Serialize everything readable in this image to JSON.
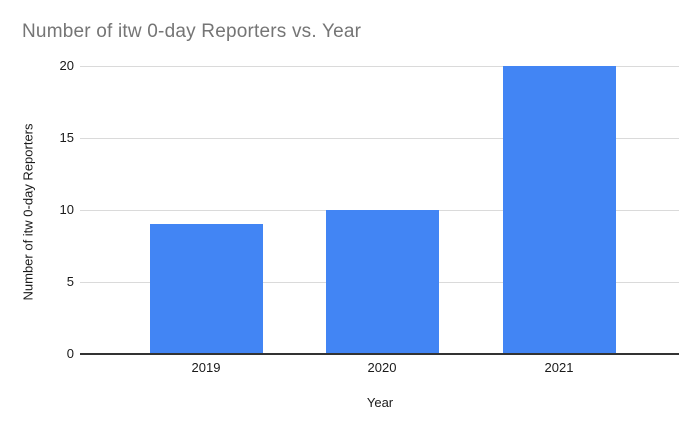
{
  "chart_data": {
    "type": "bar",
    "title": "Number of itw 0-day Reporters vs. Year",
    "categories": [
      "2019",
      "2020",
      "2021"
    ],
    "values": [
      9,
      10,
      20
    ],
    "xlabel": "Year",
    "ylabel": "Number of itw 0-day Reporters",
    "ylim": [
      0,
      20
    ],
    "yticks": [
      0,
      5,
      10,
      15,
      20
    ],
    "grid": true,
    "legend": "none",
    "bar_color": "#4285F4",
    "gridline_color": "#dadada",
    "axis_line_color": "#333333",
    "title_color": "#757575"
  }
}
